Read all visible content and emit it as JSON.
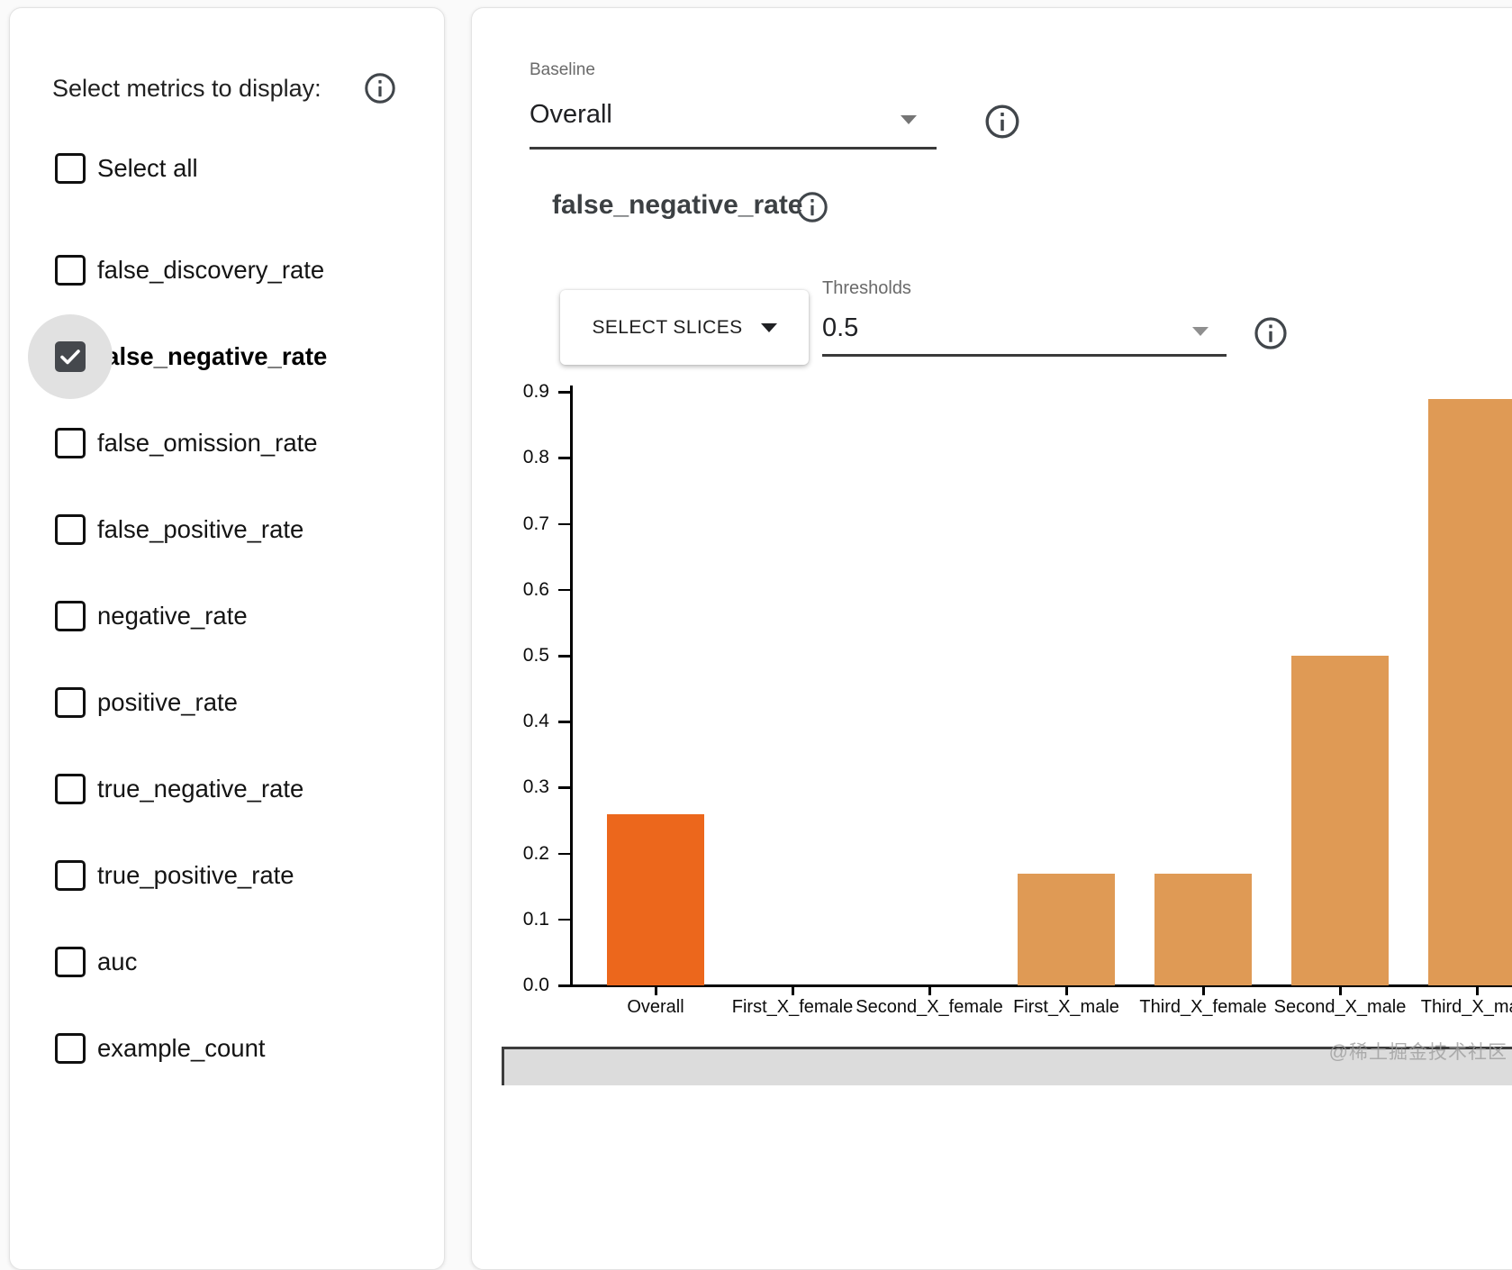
{
  "sidebar": {
    "header": "Select metrics to display:",
    "select_all": {
      "label": "Select all",
      "checked": false
    },
    "metrics": [
      {
        "label": "false_discovery_rate",
        "checked": false
      },
      {
        "label": "false_negative_rate",
        "checked": true
      },
      {
        "label": "false_omission_rate",
        "checked": false
      },
      {
        "label": "false_positive_rate",
        "checked": false
      },
      {
        "label": "negative_rate",
        "checked": false
      },
      {
        "label": "positive_rate",
        "checked": false
      },
      {
        "label": "true_negative_rate",
        "checked": false
      },
      {
        "label": "true_positive_rate",
        "checked": false
      },
      {
        "label": "auc",
        "checked": false
      },
      {
        "label": "example_count",
        "checked": false
      }
    ]
  },
  "main": {
    "baseline": {
      "label": "Baseline",
      "value": "Overall"
    },
    "metric_title": "false_negative_rate",
    "select_slices_label": "SELECT SLICES",
    "thresholds": {
      "label": "Thresholds",
      "value": "0.5"
    }
  },
  "chart_data": {
    "type": "bar",
    "title": "false_negative_rate",
    "categories": [
      "Overall",
      "First_X_female",
      "Second_X_female",
      "First_X_male",
      "Third_X_female",
      "Second_X_male",
      "Third_X_male"
    ],
    "values": [
      0.26,
      0,
      0,
      0.17,
      0.17,
      0.5,
      0.89
    ],
    "baseline_category": "Overall",
    "ylim": [
      0,
      0.9
    ],
    "ytick_labels": [
      "0.0",
      "0.1",
      "0.2",
      "0.3",
      "0.4",
      "0.5",
      "0.6",
      "0.7",
      "0.8",
      "0.9"
    ],
    "xlabel": "",
    "ylabel": "",
    "grid": false,
    "legend": "none",
    "bar_colors": {
      "baseline": "#EC671C",
      "slice": "#DF9A55"
    }
  },
  "icons": {
    "info": "i-in-circle",
    "dropdown": "filled-triangle-down",
    "check": "checkmark"
  },
  "colors": {
    "table_header_bg": "#DCDCDC",
    "ripple_gray": "#E1E1E1",
    "checkbox_checked_fill": "#45484D"
  },
  "watermark": "@稀土掘金技术社区"
}
